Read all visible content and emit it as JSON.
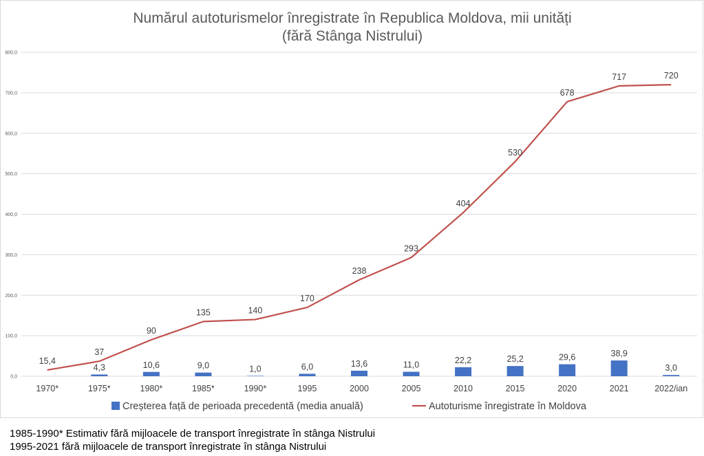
{
  "chart_data": {
    "type": "bar+line",
    "title_lines": [
      "Numărul autoturismelor înregistrate în Republica Moldova, mii unități",
      "(fără Stânga Nistrului)"
    ],
    "categories": [
      "1970*",
      "1975*",
      "1980*",
      "1985*",
      "1990*",
      "1995",
      "2000",
      "2005",
      "2010",
      "2015",
      "2020",
      "2021",
      "2022/ian"
    ],
    "y_ticks": [
      "0,0",
      "100,0",
      "200,0",
      "300,0",
      "400,0",
      "500,0",
      "600,0",
      "700,0",
      "800,0"
    ],
    "ylim": [
      0,
      800
    ],
    "grid": true,
    "legend_position": "bottom",
    "series": [
      {
        "name": "Creșterea față de perioada precedentă (media anuală)",
        "type": "bar",
        "color": "#4472c4",
        "values": [
          null,
          4.3,
          10.6,
          9.0,
          1.0,
          6.0,
          13.6,
          11.0,
          22.2,
          25.2,
          29.6,
          38.9,
          3.0
        ],
        "labels": [
          "",
          "4,3",
          "10,6",
          "9,0",
          "1,0",
          "6,0",
          "13,6",
          "11,0",
          "22,2",
          "25,2",
          "29,6",
          "38,9",
          "3,0"
        ]
      },
      {
        "name": "Autoturisme înregistrate în Moldova",
        "type": "line",
        "color": "#c0504d",
        "values": [
          15.4,
          37,
          90,
          135,
          140,
          170,
          238,
          293,
          404,
          530,
          678,
          717,
          720
        ],
        "labels": [
          "15,4",
          "37",
          "90",
          "135",
          "140",
          "170",
          "238",
          "293",
          "404",
          "530",
          "678",
          "717",
          "720"
        ]
      }
    ]
  },
  "notes": [
    "1985-1990* Estimativ fără mijloacele de transport înregistrate în stânga Nistrului",
    "1995-2021 fără mijloacele de transport înregistrate în stânga Nistrului"
  ]
}
